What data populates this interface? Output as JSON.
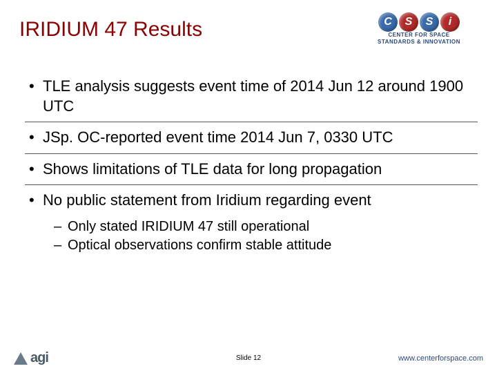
{
  "title": "IRIDIUM 47 Results",
  "logo": {
    "letters": [
      "C",
      "S",
      "S",
      "i"
    ],
    "colors": [
      "#3a6aa8",
      "#b02a2a",
      "#3a6aa8",
      "#b02a2a"
    ],
    "sub1": "CENTER FOR SPACE",
    "sub2": "STANDARDS & INNOVATION"
  },
  "bullets": [
    {
      "text": "TLE analysis suggests event time of 2014 Jun 12 around 1900 UTC",
      "subs": []
    },
    {
      "text": "JSp. OC-reported event time 2014 Jun 7, 0330 UTC",
      "subs": []
    },
    {
      "text": "Shows limitations of TLE data for long propagation",
      "subs": []
    },
    {
      "text": "No public statement from Iridium regarding event",
      "subs": [
        "Only stated IRIDIUM 47 still operational",
        "Optical observations confirm stable attitude"
      ]
    }
  ],
  "footer": {
    "agi": "agi",
    "slide": "Slide 12",
    "url": "www.centerforspace.com"
  }
}
